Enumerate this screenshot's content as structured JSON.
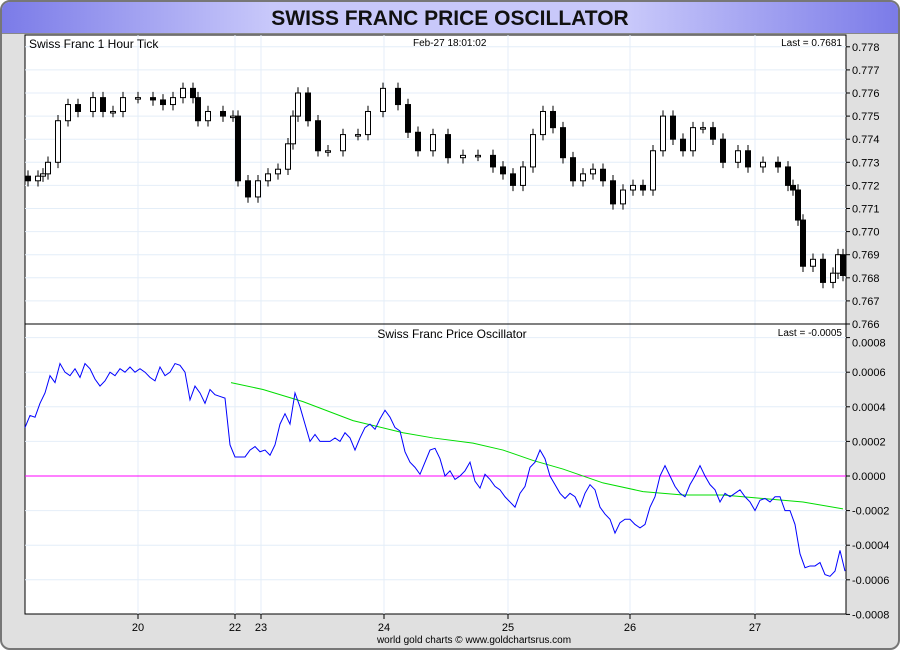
{
  "title": "SWISS FRANC PRICE OSCILLATOR",
  "footer": "world gold charts © www.goldchartsrus.com",
  "colors": {
    "oscillator": "#0000ff",
    "signal": "#00dd00",
    "zero": "#ff00ff",
    "candle": "#000000",
    "grid": "#e4eef8"
  },
  "chart_data": [
    {
      "type": "candlestick",
      "title": "Swiss Franc 1 Hour Tick",
      "timestamp": "Feb-27  18:01:02",
      "last_label": "Last = 0.7681",
      "ylim": [
        0.766,
        0.7785
      ],
      "yticks": [
        "0.778",
        "0.777",
        "0.776",
        "0.775",
        "0.774",
        "0.773",
        "0.772",
        "0.771",
        "0.770",
        "0.769",
        "0.768",
        "0.767",
        "0.766"
      ],
      "bars": [
        0,
        163
      ],
      "closes": [
        [
          0,
          0.7722
        ],
        [
          2,
          0.7724
        ],
        [
          3,
          0.7725
        ],
        [
          4,
          0.773
        ],
        [
          6,
          0.7748
        ],
        [
          8,
          0.7755
        ],
        [
          10,
          0.7752
        ],
        [
          13,
          0.7758
        ],
        [
          15,
          0.7752
        ],
        [
          17,
          0.7752
        ],
        [
          19,
          0.7758
        ],
        [
          22,
          0.7758
        ],
        [
          25,
          0.7757
        ],
        [
          27,
          0.7755
        ],
        [
          29,
          0.7758
        ],
        [
          31,
          0.7762
        ],
        [
          33,
          0.7758
        ],
        [
          34,
          0.7748
        ],
        [
          36,
          0.7752
        ],
        [
          39,
          0.775
        ],
        [
          41,
          0.775
        ],
        [
          42,
          0.7722
        ],
        [
          44,
          0.7715
        ],
        [
          46,
          0.7722
        ],
        [
          48,
          0.7725
        ],
        [
          50,
          0.7727
        ],
        [
          52,
          0.7738
        ],
        [
          53,
          0.775
        ],
        [
          54,
          0.776
        ],
        [
          56,
          0.7748
        ],
        [
          58,
          0.7735
        ],
        [
          60,
          0.7735
        ],
        [
          63,
          0.7742
        ],
        [
          66,
          0.7742
        ],
        [
          68,
          0.7752
        ],
        [
          71,
          0.7762
        ],
        [
          74,
          0.7755
        ],
        [
          76,
          0.7743
        ],
        [
          78,
          0.7735
        ],
        [
          81,
          0.7742
        ],
        [
          84,
          0.7732
        ],
        [
          87,
          0.7733
        ],
        [
          90,
          0.7733
        ],
        [
          93,
          0.7728
        ],
        [
          95,
          0.7725
        ],
        [
          97,
          0.772
        ],
        [
          99,
          0.7728
        ],
        [
          101,
          0.7742
        ],
        [
          103,
          0.7752
        ],
        [
          105,
          0.7745
        ],
        [
          107,
          0.7732
        ],
        [
          109,
          0.7722
        ],
        [
          111,
          0.7725
        ],
        [
          113,
          0.7727
        ],
        [
          115,
          0.7722
        ],
        [
          117,
          0.7712
        ],
        [
          119,
          0.7718
        ],
        [
          121,
          0.772
        ],
        [
          123,
          0.7718
        ],
        [
          125,
          0.7735
        ],
        [
          127,
          0.775
        ],
        [
          129,
          0.774
        ],
        [
          131,
          0.7735
        ],
        [
          133,
          0.7745
        ],
        [
          135,
          0.7745
        ],
        [
          137,
          0.774
        ],
        [
          139,
          0.773
        ],
        [
          142,
          0.7735
        ],
        [
          144,
          0.7728
        ],
        [
          147,
          0.773
        ],
        [
          150,
          0.7728
        ],
        [
          152,
          0.772
        ],
        [
          153,
          0.7718
        ],
        [
          154,
          0.7705
        ],
        [
          155,
          0.7685
        ],
        [
          157,
          0.7688
        ],
        [
          159,
          0.7678
        ],
        [
          161,
          0.7682
        ],
        [
          162,
          0.769
        ],
        [
          163,
          0.7681
        ]
      ]
    },
    {
      "type": "line",
      "title": "Swiss Franc Price Oscillator",
      "last_label": "Last = -0.0005",
      "ylim": [
        -0.0008,
        0.0008
      ],
      "yticks": [
        "0.0008",
        "0.0006",
        "0.0004",
        "0.0002",
        "0.0000",
        "-0.0002",
        "-0.0004",
        "-0.0006",
        "-0.0008"
      ],
      "xticks": [
        {
          "label": "20",
          "bar": 22
        },
        {
          "label": "22",
          "bar": 41.4
        },
        {
          "label": "23",
          "bar": 46.6
        },
        {
          "label": "24",
          "bar": 71.2
        },
        {
          "label": "25",
          "bar": 96
        },
        {
          "label": "26",
          "bar": 120.4
        },
        {
          "label": "27",
          "bar": 145.4
        }
      ],
      "series": [
        {
          "name": "oscillator",
          "start_bar": 0,
          "values": [
            0.00028,
            0.00035,
            0.00034,
            0.00042,
            0.00048,
            0.00058,
            0.00054,
            0.00065,
            0.0006,
            0.00058,
            0.00062,
            0.00057,
            0.00065,
            0.00062,
            0.00056,
            0.00052,
            0.00055,
            0.0006,
            0.00058,
            0.00062,
            0.0006,
            0.00063,
            0.0006,
            0.00062,
            0.0006,
            0.00057,
            0.00055,
            0.00063,
            0.00058,
            0.0006,
            0.00065,
            0.00064,
            0.0006,
            0.00044,
            0.00052,
            0.00048,
            0.00042,
            0.0005,
            0.00047,
            0.00046,
            0.00045,
            0.00018,
            0.00011,
            0.00011,
            0.00011,
            0.00015,
            0.00017,
            0.00014,
            0.00015,
            0.00012,
            0.00018,
            0.0003,
            0.00036,
            0.0003,
            0.00048,
            0.0004,
            0.0003,
            0.0002,
            0.00024,
            0.0002,
            0.0002,
            0.0002,
            0.00022,
            0.0002,
            0.00025,
            0.00022,
            0.00015,
            0.00022,
            0.00028,
            0.0003,
            0.00027,
            0.00033,
            0.00038,
            0.00034,
            0.00028,
            0.00026,
            0.00014,
            8e-05,
            5e-05,
            1e-05,
            8e-05,
            0.00015,
            0.00016,
            0.0001,
            0.0,
            3e-05,
            -2e-05,
            0.0,
            3e-05,
            8e-05,
            -3e-05,
            -7e-05,
            1e-05,
            -2e-05,
            -6e-05,
            -8e-05,
            -0.00012,
            -0.00015,
            -0.00018,
            -0.0001,
            -6e-05,
            5e-05,
            8e-05,
            0.00015,
            0.0001,
            0.0,
            -5e-05,
            -0.0001,
            -0.00013,
            -0.0001,
            -0.00012,
            -0.00018,
            -0.0001,
            -5e-05,
            -8e-05,
            -0.00018,
            -0.00022,
            -0.00025,
            -0.00033,
            -0.00027,
            -0.00025,
            -0.00025,
            -0.00028,
            -0.0003,
            -0.00028,
            -0.00018,
            -0.00012,
            0.0,
            6e-05,
            0.0,
            -6e-05,
            -0.0001,
            -0.00012,
            -5e-05,
            0.0,
            6e-05,
            0.0,
            -5e-05,
            -8e-05,
            -0.00015,
            -0.0001,
            -0.00012,
            -0.0001,
            -8e-05,
            -0.00012,
            -0.00015,
            -0.0002,
            -0.00014,
            -0.00013,
            -0.00015,
            -0.00012,
            -0.00012,
            -0.0002,
            -0.0002,
            -0.00028,
            -0.00045,
            -0.00053,
            -0.00052,
            -0.00052,
            -0.0005,
            -0.00057,
            -0.00058,
            -0.00055,
            -0.00043,
            -0.00055
          ]
        },
        {
          "name": "signal",
          "points": [
            [
              40.6,
              0.00054
            ],
            [
              47,
              0.0005
            ],
            [
              55,
              0.00043
            ],
            [
              65,
              0.00032
            ],
            [
              75,
              0.00025
            ],
            [
              81,
              0.00022
            ],
            [
              89,
              0.00019
            ],
            [
              95,
              0.00015
            ],
            [
              101,
              9e-05
            ],
            [
              107,
              4e-05
            ],
            [
              115,
              -4e-05
            ],
            [
              123,
              -9e-05
            ],
            [
              131,
              -0.00011
            ],
            [
              139,
              -0.00011
            ],
            [
              147,
              -0.00013
            ],
            [
              155,
              -0.00015
            ],
            [
              163,
              -0.00019
            ]
          ]
        }
      ],
      "zero_line": 0
    }
  ]
}
